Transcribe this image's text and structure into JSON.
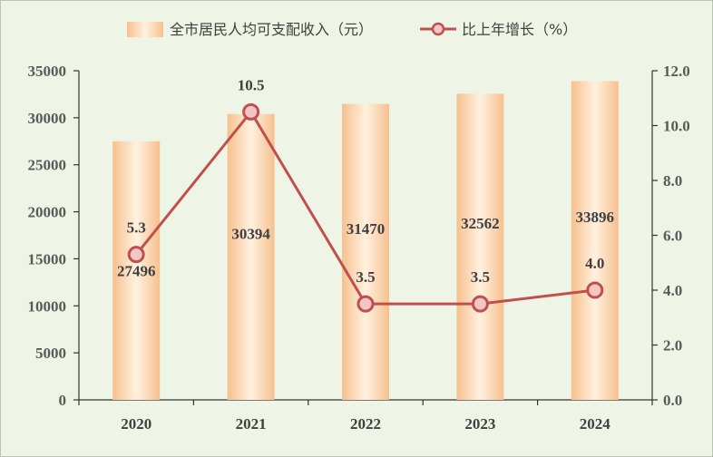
{
  "chart_data": {
    "type": "bar+line",
    "categories": [
      "2020",
      "2021",
      "2022",
      "2023",
      "2024"
    ],
    "series": [
      {
        "name": "全市居民人均可支配收入（元）",
        "type": "bar",
        "axis": "left",
        "values": [
          27496,
          30394,
          31470,
          32562,
          33896
        ],
        "labels": [
          "27496",
          "30394",
          "31470",
          "32562",
          "33896"
        ]
      },
      {
        "name": "比上年增长（%）",
        "type": "line",
        "axis": "right",
        "values": [
          5.3,
          10.5,
          3.5,
          3.5,
          4.0
        ],
        "labels": [
          "5.3",
          "10.5",
          "3.5",
          "3.5",
          "4.0"
        ]
      }
    ],
    "y_left": {
      "range": [
        0,
        35000
      ],
      "ticks": [
        0,
        5000,
        10000,
        15000,
        20000,
        25000,
        30000,
        35000
      ],
      "tick_labels": [
        "0",
        "5000",
        "10000",
        "15000",
        "20000",
        "25000",
        "30000",
        "35000"
      ]
    },
    "y_right": {
      "range": [
        0,
        12
      ],
      "ticks": [
        0,
        2,
        4,
        6,
        8,
        10,
        12
      ],
      "tick_labels": [
        "0.0",
        "2.0",
        "4.0",
        "6.0",
        "8.0",
        "10.0",
        "12.0"
      ]
    },
    "legend": "top-center",
    "grid": false,
    "colors": {
      "bar_edge": "#f6c08e",
      "bar_center": "#fff1df",
      "line": "#c0504d",
      "marker_fill": "#f2c6c5",
      "axis": "#333333",
      "background": "#eef4e6"
    }
  }
}
